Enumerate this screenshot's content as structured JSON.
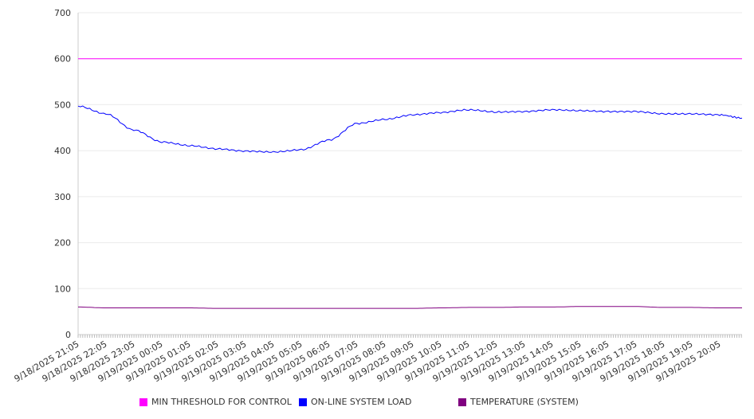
{
  "chart_data": {
    "type": "line",
    "title": "",
    "xlabel": "",
    "ylabel": "",
    "ylim": [
      0,
      700
    ],
    "yticks": [
      0,
      100,
      200,
      300,
      400,
      500,
      600,
      700
    ],
    "grid": true,
    "legend_position": "bottom",
    "x_tick_labels": [
      "9/18/2025 21:05",
      "9/18/2025 22:05",
      "9/18/2025 23:05",
      "9/19/2025 00:05",
      "9/19/2025 01:05",
      "9/19/2025 02:05",
      "9/19/2025 03:05",
      "9/19/2025 04:05",
      "9/19/2025 05:05",
      "9/19/2025 06:05",
      "9/19/2025 07:05",
      "9/19/2025 08:05",
      "9/19/2025 09:05",
      "9/19/2025 10:05",
      "9/19/2025 11:05",
      "9/19/2025 12:05",
      "9/19/2025 13:05",
      "9/19/2025 14:05",
      "9/19/2025 15:05",
      "9/19/2025 16:05",
      "9/19/2025 17:05",
      "9/19/2025 18:05",
      "9/19/2025 19:05",
      "9/19/2025 20:05"
    ],
    "x_hours": [
      0,
      1,
      2,
      3,
      4,
      5,
      6,
      7,
      8,
      9,
      10,
      11,
      12,
      13,
      14,
      15,
      16,
      17,
      18,
      19,
      20,
      21,
      22,
      23,
      23.8
    ],
    "x_range_hours": [
      0,
      23.8
    ],
    "series": [
      {
        "name": "MIN THRESHOLD FOR CONTROL",
        "color": "#ff00ff",
        "values": [
          600,
          600,
          600,
          600,
          600,
          600,
          600,
          600,
          600,
          600,
          600,
          600,
          600,
          600,
          600,
          600,
          600,
          600,
          600,
          600,
          600,
          600,
          600,
          600,
          600
        ]
      },
      {
        "name": "ON-LINE SYSTEM LOAD",
        "color": "#0000ff",
        "values": [
          497,
          480,
          445,
          419,
          411,
          404,
          399,
          397,
          402,
          423,
          459,
          468,
          478,
          483,
          489,
          484,
          485,
          489,
          487,
          485,
          485,
          480,
          480,
          478,
          471
        ]
      },
      {
        "name": "TEMPERATURE (SYSTEM)",
        "color": "#800080",
        "values": [
          60,
          58,
          58,
          58,
          58,
          57,
          57,
          57,
          57,
          57,
          57,
          57,
          57,
          58,
          59,
          59,
          60,
          60,
          61,
          61,
          61,
          59,
          59,
          58,
          58
        ]
      }
    ]
  }
}
